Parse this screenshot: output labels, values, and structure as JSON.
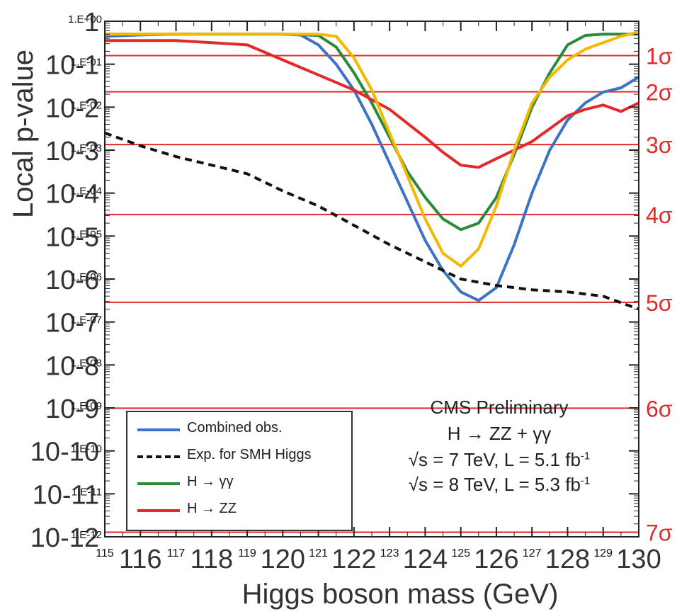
{
  "chart_data": {
    "type": "line",
    "title": "",
    "xlabel": "Higgs boson mass (GeV)",
    "ylabel": "Local p-value",
    "xlim": [
      115,
      130
    ],
    "ylog": true,
    "ylim_exponent": [
      -12,
      0
    ],
    "x_ticks_small": [
      "115",
      "117",
      "119",
      "121",
      "123",
      "125",
      "127",
      "129"
    ],
    "x_ticks_large": [
      "116",
      "118",
      "120",
      "122",
      "124",
      "126",
      "128",
      "130"
    ],
    "y_ticks_small": [
      "1.E+00",
      "1.E-01",
      "1.E-02",
      "1.E-03",
      "1.E-04",
      "1.E-05",
      "1.E-06",
      "1.E-07",
      "1.E-08",
      "1.E-09",
      "1.E-10",
      "1.E-11",
      "1.E-12"
    ],
    "y_ticks_large": [
      "1",
      "10-1",
      "10-2",
      "10-3",
      "10-4",
      "10-5",
      "10-6",
      "10-7",
      "10-8",
      "10-9",
      "10-10",
      "10-11",
      "10-12"
    ],
    "sigma_lines": [
      {
        "label": "1σ",
        "p": 0.159
      },
      {
        "label": "2σ",
        "p": 0.0228
      },
      {
        "label": "3σ",
        "p": 0.00135
      },
      {
        "label": "4σ",
        "p": 3.17e-05
      },
      {
        "label": "5σ",
        "p": 2.87e-07
      },
      {
        "label": "6σ",
        "p": 9.87e-10
      },
      {
        "label": "7σ",
        "p": 1.28e-12
      }
    ],
    "series": [
      {
        "name": "Combined obs.",
        "color": "#3c73c6",
        "style": "solid",
        "x": [
          115,
          116,
          117,
          118,
          119,
          120,
          120.5,
          121,
          121.5,
          122,
          122.5,
          123,
          123.5,
          124,
          124.5,
          125,
          125.5,
          126,
          126.5,
          127,
          127.5,
          128,
          128.5,
          129,
          129.5,
          130
        ],
        "log10p": [
          -0.35,
          -0.32,
          -0.3,
          -0.3,
          -0.3,
          -0.3,
          -0.32,
          -0.55,
          -1.0,
          -1.6,
          -2.4,
          -3.3,
          -4.2,
          -5.1,
          -5.8,
          -6.3,
          -6.5,
          -6.2,
          -5.2,
          -4.0,
          -3.0,
          -2.3,
          -1.9,
          -1.65,
          -1.55,
          -1.3
        ]
      },
      {
        "name": "Exp. for SMH Higgs",
        "color": "#111111",
        "style": "dashed",
        "x": [
          115,
          116,
          117,
          118,
          119,
          120,
          121,
          122,
          123,
          124,
          125,
          126,
          127,
          128,
          129,
          130
        ],
        "log10p": [
          -2.6,
          -2.9,
          -3.15,
          -3.35,
          -3.55,
          -3.95,
          -4.3,
          -4.75,
          -5.2,
          -5.6,
          -6.0,
          -6.15,
          -6.25,
          -6.3,
          -6.4,
          -6.7
        ]
      },
      {
        "name": "H → γγ",
        "color": "#2a8a3a",
        "style": "solid",
        "x": [
          115,
          116,
          117,
          118,
          119,
          120,
          121,
          121.5,
          122,
          122.5,
          123,
          123.5,
          124,
          124.5,
          125,
          125.5,
          126,
          126.5,
          127,
          127.5,
          128,
          128.5,
          129,
          130
        ],
        "log10p": [
          -0.3,
          -0.3,
          -0.3,
          -0.3,
          -0.3,
          -0.3,
          -0.33,
          -0.6,
          -1.2,
          -1.9,
          -2.7,
          -3.5,
          -4.1,
          -4.6,
          -4.85,
          -4.7,
          -4.1,
          -3.1,
          -2.0,
          -1.2,
          -0.55,
          -0.33,
          -0.3,
          -0.3
        ]
      },
      {
        "name": "H → ZZ",
        "color": "#e32a2a",
        "style": "solid",
        "x": [
          115,
          116,
          117,
          118,
          119,
          120,
          121,
          122,
          123,
          124,
          124.5,
          125,
          125.5,
          126,
          126.5,
          127,
          127.5,
          128,
          128.5,
          129,
          129.5,
          130
        ],
        "log10p": [
          -0.45,
          -0.45,
          -0.45,
          -0.5,
          -0.55,
          -0.9,
          -1.25,
          -1.6,
          -2.05,
          -2.7,
          -3.05,
          -3.35,
          -3.4,
          -3.2,
          -3.0,
          -2.8,
          -2.5,
          -2.2,
          -2.05,
          -1.95,
          -2.1,
          -1.9
        ]
      },
      {
        "color": "#f5b800",
        "style": "solid",
        "x": [
          115,
          116,
          117,
          118,
          119,
          120,
          121,
          121.5,
          122,
          122.5,
          123,
          123.5,
          124,
          124.5,
          125,
          125.5,
          126,
          126.5,
          127,
          127.5,
          128,
          128.5,
          129,
          129.5,
          130
        ],
        "log10p": [
          -0.3,
          -0.3,
          -0.3,
          -0.3,
          -0.3,
          -0.3,
          -0.3,
          -0.35,
          -0.85,
          -1.6,
          -2.6,
          -3.6,
          -4.6,
          -5.4,
          -5.7,
          -5.3,
          -4.3,
          -3.0,
          -1.9,
          -1.3,
          -0.9,
          -0.65,
          -0.5,
          -0.35,
          -0.25
        ]
      }
    ],
    "annotation": {
      "line1": "CMS Preliminary",
      "line2": "H → ZZ + γγ",
      "line3": "√s = 7 TeV, L = 5.1 fb",
      "line3_sup": "-1",
      "line4": "√s = 8 TeV, L = 5.3 fb",
      "line4_sup": "-1"
    },
    "legend": {
      "position": "bottom-left",
      "entries": [
        {
          "label": "Combined obs.",
          "color": "#3c73c6",
          "style": "solid"
        },
        {
          "label": "Exp. for SMH Higgs",
          "color": "#111111",
          "style": "dashed"
        },
        {
          "label": "H → γγ",
          "color": "#2a8a3a",
          "style": "solid"
        },
        {
          "label": "H → ZZ",
          "color": "#e32a2a",
          "style": "solid"
        }
      ]
    }
  }
}
